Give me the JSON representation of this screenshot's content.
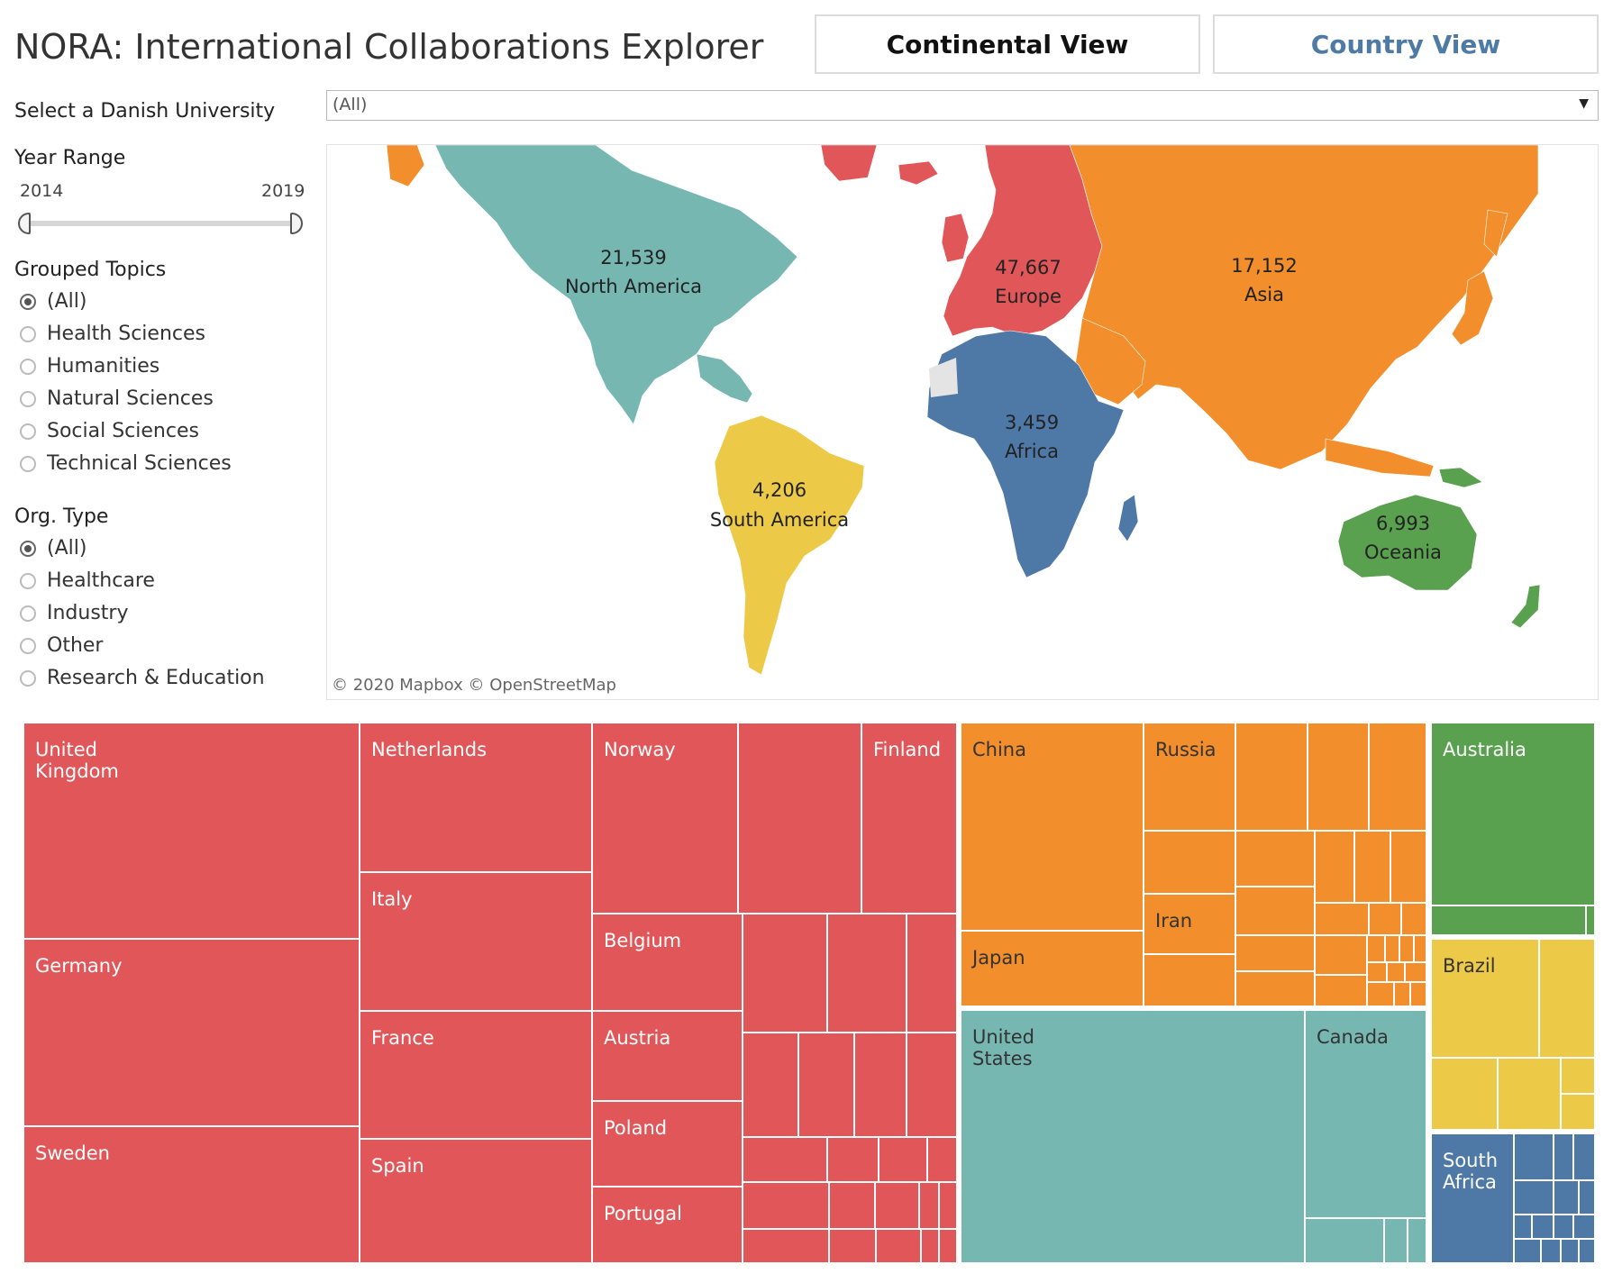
{
  "header": {
    "title": "NORA: International Collaborations Explorer",
    "continental_view": "Continental View",
    "country_view": "Country View"
  },
  "filters": {
    "university_label": "Select a Danish University",
    "university_value": "(All)",
    "year_label": "Year Range",
    "year_start": "2014",
    "year_end": "2019",
    "topics_label": "Grouped Topics",
    "topics": [
      "(All)",
      "Health Sciences",
      "Humanities",
      "Natural Sciences",
      "Social Sciences",
      "Technical Sciences"
    ],
    "topics_selected": "(All)",
    "org_label": "Org. Type",
    "orgs": [
      "(All)",
      "Healthcare",
      "Industry",
      "Other",
      "Research & Education"
    ],
    "orgs_selected": "(All)"
  },
  "colors": {
    "europe": "#e15759",
    "asia": "#f28e2b",
    "north_america": "#76b7b2",
    "oceania": "#59a14f",
    "south_america": "#edc948",
    "africa": "#4e79a7",
    "unmapped": "#e8e8e8"
  },
  "map": {
    "attribution": "© 2020 Mapbox  © OpenStreetMap",
    "continents": [
      {
        "name": "North America",
        "count": "21,539"
      },
      {
        "name": "Europe",
        "count": "47,667"
      },
      {
        "name": "Asia",
        "count": "17,152"
      },
      {
        "name": "Africa",
        "count": "3,459"
      },
      {
        "name": "South America",
        "count": "4,206"
      },
      {
        "name": "Oceania",
        "count": "6,993"
      }
    ]
  },
  "treemap": {
    "labels": {
      "uk": "United Kingdom",
      "netherlands": "Netherlands",
      "norway": "Norway",
      "finland": "Finland",
      "germany": "Germany",
      "italy": "Italy",
      "belgium": "Belgium",
      "france": "France",
      "austria": "Austria",
      "sweden": "Sweden",
      "spain": "Spain",
      "poland": "Poland",
      "portugal": "Portugal",
      "china": "China",
      "russia": "Russia",
      "iran": "Iran",
      "japan": "Japan",
      "us": "United States",
      "canada": "Canada",
      "australia": "Australia",
      "brazil": "Brazil",
      "south_africa": "South Africa"
    }
  }
}
